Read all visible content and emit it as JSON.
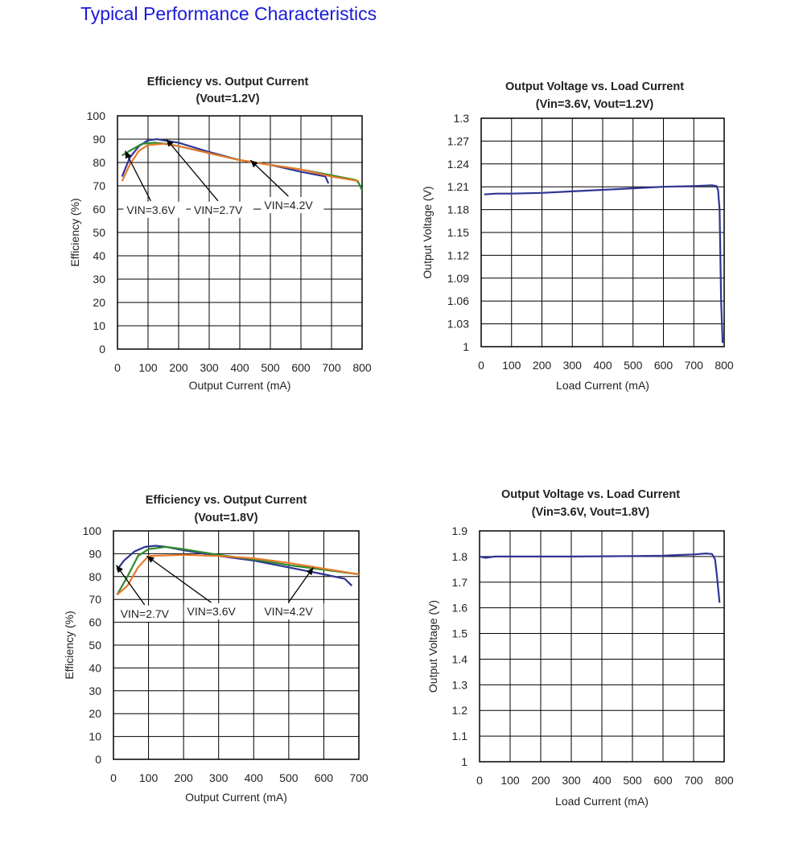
{
  "page_title": "Typical Performance Characteristics",
  "colors": {
    "title": "#1a1ad8",
    "vin_2_7": "#2e3592",
    "vin_3_6": "#2e8b2e",
    "vin_4_2": "#e8792a"
  },
  "chart_data": [
    {
      "type": "line",
      "title": "Efficiency vs. Output Current",
      "subtitle": "(Vout=1.2V)",
      "xlabel": "Output Current (mA)",
      "ylabel": "Efficiency (%)",
      "xlim": [
        0,
        800
      ],
      "ylim": [
        0,
        100
      ],
      "xticks": [
        0,
        100,
        200,
        300,
        400,
        500,
        600,
        700,
        800
      ],
      "yticks": [
        0,
        10,
        20,
        30,
        40,
        50,
        60,
        70,
        80,
        90,
        100
      ],
      "ytick_labels": [
        "0",
        "10",
        "20",
        "30",
        "40",
        "50",
        "60",
        "70",
        "80",
        "90",
        "100"
      ],
      "grid": true,
      "series": [
        {
          "name": "VIN=2.7V",
          "color": "#2e3592",
          "x": [
            15,
            40,
            70,
            100,
            130,
            150,
            200,
            300,
            400,
            500,
            600,
            680,
            690
          ],
          "y": [
            74,
            82,
            87,
            89.5,
            90,
            89.5,
            88.5,
            84.5,
            81,
            79,
            76,
            74,
            71
          ]
        },
        {
          "name": "VIN=3.6V",
          "color": "#2e8b2e",
          "x": [
            15,
            40,
            80,
            120,
            160,
            200,
            300,
            400,
            500,
            600,
            700,
            780,
            790,
            800
          ],
          "y": [
            83,
            85,
            88,
            88.5,
            88,
            87,
            84,
            81,
            79,
            77,
            74.5,
            72.5,
            71,
            68
          ]
        },
        {
          "name": "VIN=4.2V",
          "color": "#e8792a",
          "x": [
            15,
            40,
            70,
            100,
            150,
            200,
            300,
            400,
            500,
            600,
            700,
            790
          ],
          "y": [
            72,
            79,
            85,
            87.5,
            88,
            87,
            84,
            81,
            79,
            77,
            74,
            72
          ]
        }
      ],
      "annotations": [
        {
          "text": "VIN=3.6V",
          "x": 30,
          "y": 58,
          "arrow_to": [
            25,
            85
          ]
        },
        {
          "text": "VIN=2.7V",
          "x": 250,
          "y": 58,
          "arrow_to": [
            160,
            90
          ]
        },
        {
          "text": "VIN=4.2V",
          "x": 480,
          "y": 60,
          "arrow_to": [
            435,
            81
          ]
        }
      ]
    },
    {
      "type": "line",
      "title": "Output Voltage vs. Load Current",
      "subtitle": "(Vin=3.6V, Vout=1.2V)",
      "xlabel": "Load Current (mA)",
      "ylabel": "Output Voltage (V)",
      "xlim": [
        0,
        800
      ],
      "ylim": [
        1,
        1.3
      ],
      "xticks": [
        0,
        100,
        200,
        300,
        400,
        500,
        600,
        700,
        800
      ],
      "yticks": [
        1,
        1.03,
        1.06,
        1.09,
        1.12,
        1.15,
        1.18,
        1.21,
        1.24,
        1.27,
        1.3
      ],
      "ytick_labels": [
        "1",
        "1.03",
        "1.06",
        "1.09",
        "1.12",
        "1.15",
        "1.18",
        "1.21",
        "1.24",
        "1.27",
        "1.3"
      ],
      "grid": true,
      "series": [
        {
          "name": "",
          "color": "#2e3592",
          "x": [
            10,
            50,
            100,
            200,
            300,
            400,
            500,
            600,
            700,
            760,
            775,
            780,
            785,
            790,
            795
          ],
          "y": [
            1.2,
            1.201,
            1.201,
            1.202,
            1.204,
            1.206,
            1.208,
            1.21,
            1.211,
            1.212,
            1.211,
            1.205,
            1.18,
            1.06,
            1.005
          ]
        }
      ],
      "annotations": []
    },
    {
      "type": "line",
      "title": "Efficiency vs. Output Current",
      "subtitle": "(Vout=1.8V)",
      "xlabel": "Output Current (mA)",
      "ylabel": "Efficiency (%)",
      "xlim": [
        0,
        700
      ],
      "ylim": [
        0,
        100
      ],
      "xticks": [
        0,
        100,
        200,
        300,
        400,
        500,
        600,
        700
      ],
      "yticks": [
        0,
        10,
        20,
        30,
        40,
        50,
        60,
        70,
        80,
        90,
        100
      ],
      "ytick_labels": [
        "0",
        "10",
        "20",
        "30",
        "40",
        "50",
        "60",
        "70",
        "80",
        "90",
        "100"
      ],
      "grid": true,
      "series": [
        {
          "name": "VIN=2.7V",
          "color": "#2e3592",
          "x": [
            10,
            30,
            60,
            90,
            120,
            150,
            200,
            300,
            400,
            500,
            600,
            660,
            680
          ],
          "y": [
            83,
            87,
            91,
            93,
            93.5,
            93,
            91.5,
            89,
            87,
            84,
            81,
            79,
            76
          ]
        },
        {
          "name": "VIN=3.6V",
          "color": "#2e8b2e",
          "x": [
            10,
            40,
            70,
            100,
            150,
            200,
            300,
            400,
            500,
            600,
            700
          ],
          "y": [
            72,
            80,
            89,
            92,
            93,
            92,
            89.5,
            87.5,
            85,
            83,
            81
          ]
        },
        {
          "name": "VIN=4.2V",
          "color": "#e8792a",
          "x": [
            10,
            40,
            70,
            100,
            200,
            300,
            400,
            500,
            600,
            700
          ],
          "y": [
            72,
            76,
            84,
            89,
            89.5,
            89,
            88,
            86,
            83.5,
            81
          ]
        }
      ],
      "annotations": [
        {
          "text": "VIN=2.7V",
          "x": 20,
          "y": 62,
          "arrow_to": [
            8,
            85
          ]
        },
        {
          "text": "VIN=3.6V",
          "x": 210,
          "y": 63,
          "arrow_to": [
            95,
            89
          ]
        },
        {
          "text": "VIN=4.2V",
          "x": 430,
          "y": 63,
          "arrow_to": [
            570,
            84
          ]
        }
      ]
    },
    {
      "type": "line",
      "title": "Output Voltage vs. Load Current",
      "subtitle": "(Vin=3.6V, Vout=1.8V)",
      "xlabel": "Load Current (mA)",
      "ylabel": "Output Voltage (V)",
      "xlim": [
        0,
        800
      ],
      "ylim": [
        1,
        1.9
      ],
      "xticks": [
        0,
        100,
        200,
        300,
        400,
        500,
        600,
        700,
        800
      ],
      "yticks": [
        1,
        1.1,
        1.2,
        1.3,
        1.4,
        1.5,
        1.6,
        1.7,
        1.8,
        1.9
      ],
      "ytick_labels": [
        "1",
        "1.1",
        "1.2",
        "1.3",
        "1.4",
        "1.5",
        "1.6",
        "1.7",
        "1.8",
        "1.9"
      ],
      "grid": true,
      "series": [
        {
          "name": "",
          "color": "#2e3592",
          "x": [
            0,
            20,
            50,
            100,
            300,
            500,
            600,
            650,
            700,
            740,
            760,
            770,
            775,
            780,
            785
          ],
          "y": [
            1.8,
            1.795,
            1.8,
            1.8,
            1.8,
            1.802,
            1.803,
            1.806,
            1.808,
            1.812,
            1.81,
            1.79,
            1.74,
            1.68,
            1.62
          ]
        }
      ],
      "annotations": []
    }
  ]
}
